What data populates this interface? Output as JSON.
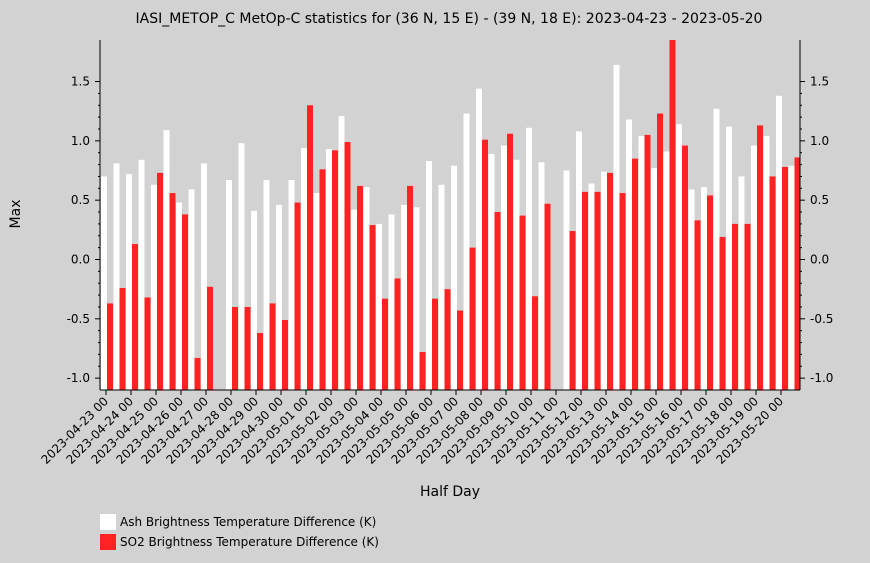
{
  "chart_data": {
    "type": "bar",
    "title": "IASI_METOP_C MetOp-C statistics for (36 N, 15 E) - (39 N, 18 E): 2023-04-23 - 2023-05-20",
    "xlabel": "Half Day",
    "ylabel": "Max",
    "ylim": [
      -1.1,
      1.85
    ],
    "yticks": [
      -1.0,
      -0.5,
      0.0,
      0.5,
      1.0,
      1.5
    ],
    "ytick_labels": [
      "-1.0",
      "-0.5",
      "0.0",
      "0.5",
      "1.0",
      "1.5"
    ],
    "categories": [
      "2023-04-23 00",
      "2023-04-23 12",
      "2023-04-24 00",
      "2023-04-24 12",
      "2023-04-25 00",
      "2023-04-25 12",
      "2023-04-26 00",
      "2023-04-26 12",
      "2023-04-27 00",
      "2023-04-27 12",
      "2023-04-28 00",
      "2023-04-28 12",
      "2023-04-29 00",
      "2023-04-29 12",
      "2023-04-30 00",
      "2023-04-30 12",
      "2023-05-01 00",
      "2023-05-01 12",
      "2023-05-02 00",
      "2023-05-02 12",
      "2023-05-03 00",
      "2023-05-03 12",
      "2023-05-04 00",
      "2023-05-04 12",
      "2023-05-05 00",
      "2023-05-05 12",
      "2023-05-06 00",
      "2023-05-06 12",
      "2023-05-07 00",
      "2023-05-07 12",
      "2023-05-08 00",
      "2023-05-08 12",
      "2023-05-09 00",
      "2023-05-09 12",
      "2023-05-10 00",
      "2023-05-10 12",
      "2023-05-11 00",
      "2023-05-11 12",
      "2023-05-12 00",
      "2023-05-12 12",
      "2023-05-13 00",
      "2023-05-13 12",
      "2023-05-14 00",
      "2023-05-14 12",
      "2023-05-15 00",
      "2023-05-15 12",
      "2023-05-16 00",
      "2023-05-16 12",
      "2023-05-17 00",
      "2023-05-17 12",
      "2023-05-18 00",
      "2023-05-18 12",
      "2023-05-19 00",
      "2023-05-19 12",
      "2023-05-20 00",
      "2023-05-20 12"
    ],
    "xtick_labels": [
      "2023-04-23 00",
      "2023-04-24 00",
      "2023-04-25 00",
      "2023-04-26 00",
      "2023-04-27 00",
      "2023-04-28 00",
      "2023-04-29 00",
      "2023-04-30 00",
      "2023-05-01 00",
      "2023-05-02 00",
      "2023-05-03 00",
      "2023-05-04 00",
      "2023-05-05 00",
      "2023-05-06 00",
      "2023-05-07 00",
      "2023-05-08 00",
      "2023-05-09 00",
      "2023-05-10 00",
      "2023-05-11 00",
      "2023-05-12 00",
      "2023-05-13 00",
      "2023-05-14 00",
      "2023-05-15 00",
      "2023-05-16 00",
      "2023-05-17 00",
      "2023-05-18 00",
      "2023-05-19 00",
      "2023-05-20 00"
    ],
    "series": [
      {
        "name": "Ash Brightness Temperature Difference (K)",
        "color": "#ffffff",
        "values": [
          0.7,
          0.81,
          0.72,
          0.84,
          0.63,
          1.09,
          0.48,
          0.59,
          0.81,
          null,
          0.67,
          0.98,
          0.41,
          0.67,
          0.46,
          0.67,
          0.94,
          0.56,
          0.93,
          1.21,
          0.42,
          0.61,
          0.3,
          0.38,
          0.46,
          0.44,
          0.83,
          0.63,
          0.79,
          1.23,
          1.44,
          0.89,
          0.96,
          0.84,
          1.11,
          0.82,
          null,
          0.75,
          1.08,
          0.64,
          0.74,
          1.64,
          1.18,
          1.04,
          0.77,
          0.91,
          1.14,
          0.59,
          0.61,
          1.27,
          1.12,
          0.7,
          0.96,
          1.04,
          1.38,
          0.79
        ]
      },
      {
        "name": "SO2 Brightness Temperature Difference (K)",
        "color": "#ff2222",
        "values": [
          -0.37,
          -0.24,
          0.13,
          -0.32,
          0.73,
          0.56,
          0.38,
          -0.83,
          -0.23,
          null,
          -0.4,
          -0.4,
          -0.62,
          -0.37,
          -0.51,
          0.48,
          1.3,
          0.76,
          0.92,
          0.99,
          0.62,
          0.29,
          -0.33,
          -0.16,
          0.62,
          -0.78,
          -0.33,
          -0.25,
          -0.43,
          0.1,
          1.01,
          0.4,
          1.06,
          0.37,
          -0.31,
          0.47,
          null,
          0.24,
          0.57,
          0.57,
          0.73,
          0.56,
          0.85,
          1.05,
          1.23,
          1.85,
          0.96,
          0.33,
          0.54,
          0.19,
          0.3,
          0.3,
          1.13,
          0.7,
          0.78,
          0.86
        ]
      }
    ],
    "legend": "bottom-left",
    "grid": false
  }
}
